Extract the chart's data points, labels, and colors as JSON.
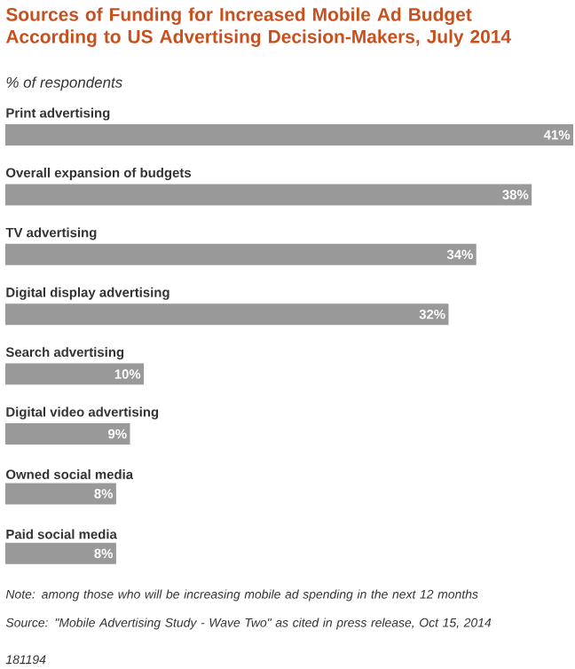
{
  "chart_data": {
    "type": "bar",
    "orientation": "horizontal",
    "title": "Sources of Funding for Increased Mobile Ad Budget According to US Advertising Decision-Makers, July 2014",
    "subtitle": "% of respondents",
    "categories": [
      "Print advertising",
      "Overall expansion of budgets",
      "TV advertising",
      "Digital display advertising",
      "Search advertising",
      "Digital video advertising",
      "Owned social media",
      "Paid social media"
    ],
    "values": [
      41,
      38,
      34,
      32,
      10,
      9,
      8,
      8
    ],
    "value_labels": [
      "41%",
      "38%",
      "34%",
      "32%",
      "10%",
      "9%",
      "8%",
      "8%"
    ],
    "color": "#999999",
    "annotations": [
      "Note: among those who will be increasing mobile ad spending in the next 12 months",
      "Source: \"Mobile Advertising Study - Wave Two\" as cited in press release, Oct 15, 2014",
      "181194"
    ]
  }
}
